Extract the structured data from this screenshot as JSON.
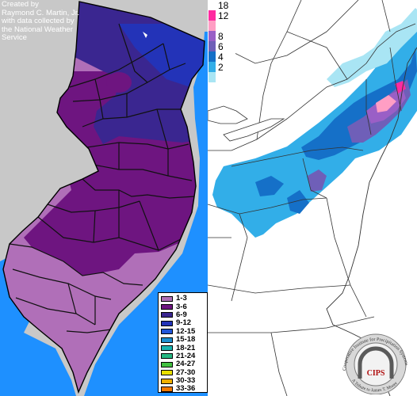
{
  "nj_map": {
    "credit_lines": [
      "Created by",
      "Raymond C. Martin, Jr.",
      "with data collected by",
      "the National Weather",
      "Service"
    ],
    "legend": [
      {
        "label": "1-3",
        "color": "#b06fb8"
      },
      {
        "label": "3-6",
        "color": "#6e1580"
      },
      {
        "label": "6-9",
        "color": "#3a2690"
      },
      {
        "label": "9-12",
        "color": "#2333b8"
      },
      {
        "label": "12-15",
        "color": "#2155d8"
      },
      {
        "label": "15-18",
        "color": "#1c8fd0"
      },
      {
        "label": "18-21",
        "color": "#17b3b0"
      },
      {
        "label": "21-24",
        "color": "#25b882"
      },
      {
        "label": "24-27",
        "color": "#41c040"
      },
      {
        "label": "27-30",
        "color": "#e8e000"
      },
      {
        "label": "30-33",
        "color": "#f0b000"
      },
      {
        "label": "33-36",
        "color": "#f07800"
      }
    ],
    "colors": {
      "background": "#c8c8c8",
      "ocean": "#1e90ff",
      "bay": "#1e90ff"
    }
  },
  "ne_map": {
    "legend": [
      {
        "label": "18",
        "color": "#ffffff"
      },
      {
        "label": "12",
        "color": "#ff2aa0"
      },
      {
        "label": "",
        "color": "#ff9ec4"
      },
      {
        "label": "8",
        "color": "#9a5fc6"
      },
      {
        "label": "6",
        "color": "#6f5fb8"
      },
      {
        "label": "4",
        "color": "#1570c8"
      },
      {
        "label": "2",
        "color": "#32aee8"
      },
      {
        "label": "",
        "color": "#a9e5f4"
      }
    ],
    "colors": {
      "background": "#ffffff",
      "borders": "#333333"
    }
  },
  "logo": {
    "acronym": "CIPS",
    "ring_top": "Cooperative Institute for Precipitation Systems",
    "ring_bottom": "A Tribute to James T. Moore",
    "colors": {
      "ring": "#a0a0a0",
      "arch": "#5a5a5a",
      "text": "#b01010"
    }
  }
}
